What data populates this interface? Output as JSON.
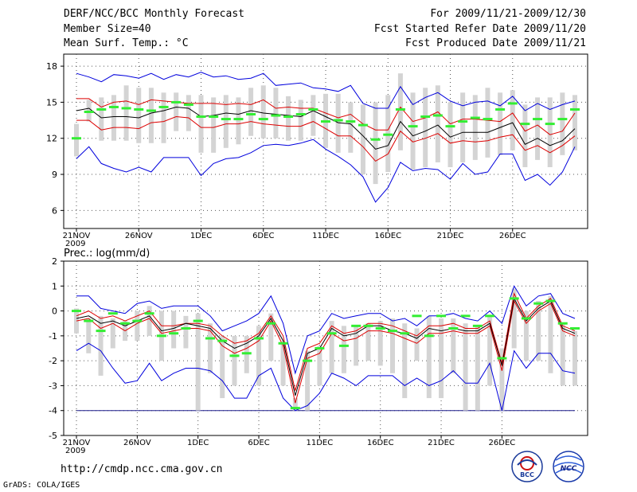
{
  "header": {
    "title": "DERF/NCC/BCC Monthly Forecast",
    "member_size": "Member Size=40",
    "variable": "Mean Surf. Temp.: °C",
    "period": "For 2009/11/21-2009/12/30",
    "started": "Fcst Started Refer Date 2009/11/20",
    "produced": "Fcst Produced Date 2009/11/21"
  },
  "footer": {
    "url": "http://cmdp.ncc.cma.gov.cn",
    "credit": "GrADS: COLA/IGES"
  },
  "logos": {
    "bcc": "BCC",
    "ncc": "NCC"
  },
  "colors": {
    "member_range": "#d4d4d4",
    "ensemble_max_min": "#0000dd",
    "spread": "#dd0000",
    "ensemble_mean": "#000000",
    "observed_marker": "#33ee33",
    "baseline": "#1a1a8a"
  },
  "chart_data": [
    {
      "type": "line",
      "title": "Mean Surf. Temp.: °C",
      "xlabel": "",
      "ylabel": "°C",
      "x_days": 40,
      "x_ticks": [
        {
          "day": 0,
          "label": "21NOV"
        },
        {
          "day": 5,
          "label": "26NOV"
        },
        {
          "day": 10,
          "label": "1DEC"
        },
        {
          "day": 15,
          "label": "6DEC"
        },
        {
          "day": 20,
          "label": "11DEC"
        },
        {
          "day": 25,
          "label": "16DEC"
        },
        {
          "day": 30,
          "label": "21DEC"
        },
        {
          "day": 35,
          "label": "26DEC"
        }
      ],
      "year_label": "2009",
      "ylim": [
        4.5,
        19
      ],
      "y_ticks": [
        6,
        9,
        12,
        15,
        18
      ],
      "grid": true,
      "series": [
        {
          "name": "max",
          "values": [
            17.4,
            17.1,
            16.7,
            17.3,
            17.2,
            17.0,
            17.4,
            16.9,
            17.3,
            17.1,
            17.5,
            17.1,
            17.2,
            16.9,
            17.0,
            17.4,
            16.4,
            16.5,
            16.6,
            16.2,
            16.1,
            15.9,
            16.4,
            14.9,
            14.5,
            14.5,
            16.3,
            14.8,
            15.4,
            15.8,
            15.1,
            14.7,
            15.0,
            15.1,
            14.7,
            15.5,
            14.3,
            14.9,
            14.4,
            14.8,
            15.1
          ]
        },
        {
          "name": "upper",
          "values": [
            15.3,
            15.3,
            14.6,
            15.0,
            15.1,
            14.8,
            15.2,
            15.1,
            15.0,
            14.9,
            14.9,
            14.9,
            14.8,
            14.9,
            14.8,
            15.2,
            14.5,
            14.6,
            14.5,
            14.5,
            14.1,
            13.7,
            14.0,
            13.2,
            12.7,
            12.7,
            14.6,
            13.4,
            13.7,
            14.2,
            13.2,
            13.6,
            13.6,
            13.5,
            13.4,
            14.1,
            12.6,
            13.1,
            12.3,
            12.6,
            14.1
          ]
        },
        {
          "name": "mean",
          "values": [
            14.3,
            14.5,
            13.7,
            13.8,
            13.8,
            13.7,
            14.1,
            14.3,
            14.6,
            14.5,
            13.8,
            13.9,
            14.1,
            14.0,
            14.3,
            14.1,
            14.0,
            13.9,
            13.8,
            14.3,
            13.8,
            13.3,
            13.2,
            12.2,
            11.1,
            11.4,
            13.4,
            12.2,
            12.6,
            13.1,
            12.1,
            12.5,
            12.5,
            12.5,
            12.9,
            13.3,
            11.5,
            12.0,
            11.4,
            11.8,
            12.8
          ]
        },
        {
          "name": "lower",
          "values": [
            13.5,
            13.5,
            12.7,
            12.9,
            12.9,
            12.8,
            13.3,
            13.4,
            13.8,
            13.7,
            12.9,
            12.9,
            13.2,
            13.2,
            13.4,
            13.2,
            13.1,
            13.0,
            13.0,
            13.4,
            12.8,
            12.2,
            12.2,
            11.3,
            10.1,
            10.7,
            12.6,
            11.7,
            12.0,
            12.4,
            11.6,
            11.8,
            11.7,
            11.8,
            12.1,
            12.3,
            11.0,
            11.4,
            10.8,
            11.4,
            12.2
          ]
        },
        {
          "name": "min",
          "values": [
            10.3,
            11.3,
            9.9,
            9.5,
            9.2,
            9.6,
            9.2,
            10.4,
            10.4,
            10.4,
            8.9,
            9.9,
            10.3,
            10.4,
            10.8,
            11.4,
            11.5,
            11.4,
            11.6,
            11.9,
            11.1,
            10.5,
            9.8,
            8.8,
            6.7,
            7.9,
            10.0,
            9.3,
            9.5,
            9.4,
            8.6,
            9.9,
            9.0,
            9.2,
            10.7,
            10.7,
            8.5,
            9.0,
            8.1,
            9.2,
            11.3
          ]
        },
        {
          "name": "member_range_top",
          "values": [
            13.2,
            15.2,
            15.4,
            15.6,
            16.4,
            16.2,
            16.2,
            15.8,
            15.8,
            15.6,
            15.6,
            15.4,
            15.6,
            15.4,
            16.2,
            16.4,
            16.2,
            15.5,
            15.2,
            15.6,
            15.7,
            15.7,
            15.0,
            14.8,
            15.0,
            15.6,
            17.4,
            15.8,
            16.2,
            16.4,
            15.0,
            15.8,
            15.6,
            16.2,
            15.8,
            16.0,
            14.8,
            15.4,
            15.4,
            15.8,
            15.6
          ]
        },
        {
          "name": "member_range_bottom",
          "values": [
            10.5,
            13.4,
            11.8,
            11.8,
            11.8,
            11.6,
            11.6,
            11.6,
            12.6,
            12.6,
            10.8,
            10.8,
            11.2,
            11.5,
            12.2,
            12.0,
            12.0,
            11.8,
            11.8,
            12.2,
            11.2,
            10.8,
            10.8,
            9.0,
            8.2,
            9.2,
            11.0,
            9.4,
            9.6,
            10.0,
            9.6,
            10.0,
            10.2,
            10.4,
            10.6,
            11.0,
            9.6,
            10.2,
            9.6,
            10.6,
            11.0
          ]
        },
        {
          "name": "observed",
          "values": [
            12.0,
            14.2,
            14.4,
            14.6,
            14.5,
            14.4,
            14.3,
            14.6,
            15.0,
            14.8,
            13.8,
            13.8,
            13.6,
            13.6,
            14.0,
            13.6,
            13.9,
            13.8,
            14.0,
            14.4,
            13.4,
            13.5,
            13.4,
            13.1,
            11.9,
            12.3,
            14.4,
            13.0,
            13.8,
            13.9,
            13.0,
            13.4,
            13.7,
            13.6,
            14.4,
            14.9,
            13.2,
            13.6,
            13.2,
            13.6,
            14.4
          ]
        }
      ]
    },
    {
      "type": "line",
      "title": "Prec.: log(mm/d)",
      "xlabel": "",
      "ylabel": "log(mm/d)",
      "x_days": 40,
      "x_ticks": [
        {
          "day": 0,
          "label": "21NOV"
        },
        {
          "day": 5,
          "label": "26NOV"
        },
        {
          "day": 10,
          "label": "1DEC"
        },
        {
          "day": 15,
          "label": "6DEC"
        },
        {
          "day": 20,
          "label": "11DEC"
        },
        {
          "day": 25,
          "label": "16DEC"
        },
        {
          "day": 30,
          "label": "21DEC"
        },
        {
          "day": 35,
          "label": "26DEC"
        }
      ],
      "year_label": "2009",
      "ylim": [
        -5,
        2
      ],
      "y_ticks": [
        -5,
        -4,
        -3,
        -2,
        -1,
        0,
        1,
        2
      ],
      "grid": true,
      "baseline": -4,
      "series": [
        {
          "name": "max",
          "values": [
            0.6,
            0.6,
            0.1,
            0.0,
            -0.1,
            0.3,
            0.4,
            0.1,
            0.2,
            0.2,
            0.2,
            -0.2,
            -0.8,
            -0.6,
            -0.4,
            -0.1,
            0.6,
            -0.5,
            -2.5,
            -1.0,
            -0.8,
            -0.1,
            -0.3,
            -0.2,
            -0.1,
            -0.1,
            -0.4,
            -0.3,
            -0.6,
            -0.2,
            -0.2,
            -0.1,
            -0.3,
            -0.4,
            0.0,
            -0.5,
            1.0,
            0.2,
            0.6,
            0.7,
            -0.1,
            -0.3
          ]
        },
        {
          "name": "upper",
          "values": [
            -0.2,
            0.0,
            -0.3,
            -0.2,
            -0.4,
            -0.2,
            0.0,
            -0.6,
            -0.6,
            -0.5,
            -0.5,
            -0.6,
            -1.0,
            -1.3,
            -1.2,
            -0.9,
            -0.2,
            -1.0,
            -3.2,
            -1.5,
            -1.3,
            -0.6,
            -0.9,
            -0.8,
            -0.5,
            -0.5,
            -0.6,
            -0.8,
            -1.0,
            -0.6,
            -0.6,
            -0.5,
            -0.7,
            -0.7,
            -0.4,
            -2.1,
            0.7,
            -0.3,
            0.2,
            0.5,
            -0.6,
            -0.8
          ]
        },
        {
          "name": "mean",
          "values": [
            -0.3,
            -0.2,
            -0.5,
            -0.4,
            -0.6,
            -0.4,
            -0.2,
            -0.8,
            -0.7,
            -0.5,
            -0.6,
            -0.7,
            -1.2,
            -1.5,
            -1.3,
            -1.0,
            -0.3,
            -1.2,
            -3.4,
            -1.7,
            -1.5,
            -0.7,
            -1.0,
            -0.9,
            -0.6,
            -0.6,
            -0.8,
            -0.9,
            -1.1,
            -0.7,
            -0.8,
            -0.7,
            -0.8,
            -0.8,
            -0.5,
            -2.2,
            0.5,
            -0.4,
            0.1,
            0.4,
            -0.7,
            -0.9
          ]
        },
        {
          "name": "lower",
          "values": [
            -0.4,
            -0.3,
            -0.7,
            -0.5,
            -0.8,
            -0.5,
            -0.3,
            -0.9,
            -0.8,
            -0.7,
            -0.7,
            -0.8,
            -1.4,
            -1.7,
            -1.5,
            -1.2,
            -0.4,
            -1.4,
            -3.7,
            -1.9,
            -1.7,
            -0.9,
            -1.2,
            -1.1,
            -0.8,
            -0.8,
            -0.9,
            -1.1,
            -1.3,
            -0.9,
            -0.9,
            -0.8,
            -0.9,
            -0.9,
            -0.6,
            -2.4,
            0.4,
            -0.5,
            0.0,
            0.3,
            -0.8,
            -1.0
          ]
        },
        {
          "name": "min",
          "values": [
            -1.6,
            -1.3,
            -1.6,
            -2.3,
            -2.9,
            -2.8,
            -2.1,
            -2.8,
            -2.5,
            -2.3,
            -2.3,
            -2.4,
            -2.8,
            -3.5,
            -3.5,
            -2.6,
            -2.3,
            -3.5,
            -4.0,
            -3.8,
            -3.3,
            -2.5,
            -2.7,
            -3.0,
            -2.6,
            -2.6,
            -2.6,
            -3.0,
            -2.7,
            -3.0,
            -2.8,
            -2.4,
            -2.9,
            -2.9,
            -2.1,
            -4.0,
            -1.6,
            -2.3,
            -1.7,
            -1.7,
            -2.4,
            -2.5
          ]
        },
        {
          "name": "member_range_top",
          "values": [
            0.1,
            -0.3,
            -0.2,
            -0.3,
            -0.4,
            0.0,
            0.2,
            0.0,
            0.0,
            -0.2,
            -0.1,
            -0.5,
            -1.0,
            -1.0,
            -1.0,
            -0.6,
            -0.1,
            -1.3,
            -3.5,
            -1.6,
            -1.4,
            -0.4,
            -0.6,
            -0.6,
            -0.5,
            -0.4,
            -0.3,
            -0.5,
            -0.7,
            -0.2,
            -0.3,
            -0.3,
            -0.5,
            -0.6,
            -0.2,
            -1.5,
            0.9,
            0.0,
            0.4,
            0.6,
            -0.5,
            -0.8
          ]
        },
        {
          "name": "member_range_bottom",
          "values": [
            -0.9,
            -1.7,
            -2.6,
            -1.5,
            -1.2,
            -1.2,
            -1.0,
            -2.0,
            -1.5,
            -1.5,
            -4.0,
            -2.5,
            -3.5,
            -3.0,
            -2.5,
            -3.0,
            -2.0,
            -3.0,
            -4.0,
            -4.0,
            -3.0,
            -2.5,
            -2.5,
            -2.2,
            -2.0,
            -2.2,
            -2.5,
            -3.5,
            -2.0,
            -3.5,
            -3.5,
            -2.5,
            -4.0,
            -4.0,
            -3.0,
            -4.0,
            -1.5,
            -2.0,
            -2.0,
            -2.5,
            -3.0,
            -3.0
          ]
        },
        {
          "name": "observed",
          "values": [
            0.0,
            -0.4,
            -0.8,
            -0.1,
            -0.5,
            -0.4,
            -0.1,
            -1.0,
            -0.9,
            -0.7,
            -0.4,
            -1.1,
            -1.2,
            -1.8,
            -1.7,
            -1.1,
            -0.5,
            -1.3,
            -3.9,
            -2.0,
            -1.5,
            -0.9,
            -1.4,
            -0.6,
            -0.6,
            -0.7,
            -0.8,
            -0.9,
            -0.2,
            -1.0,
            -0.2,
            -0.7,
            -0.2,
            -0.6,
            -0.2,
            -1.9,
            0.5,
            -0.3,
            0.3,
            0.4,
            -0.5,
            -0.7
          ]
        }
      ]
    }
  ]
}
